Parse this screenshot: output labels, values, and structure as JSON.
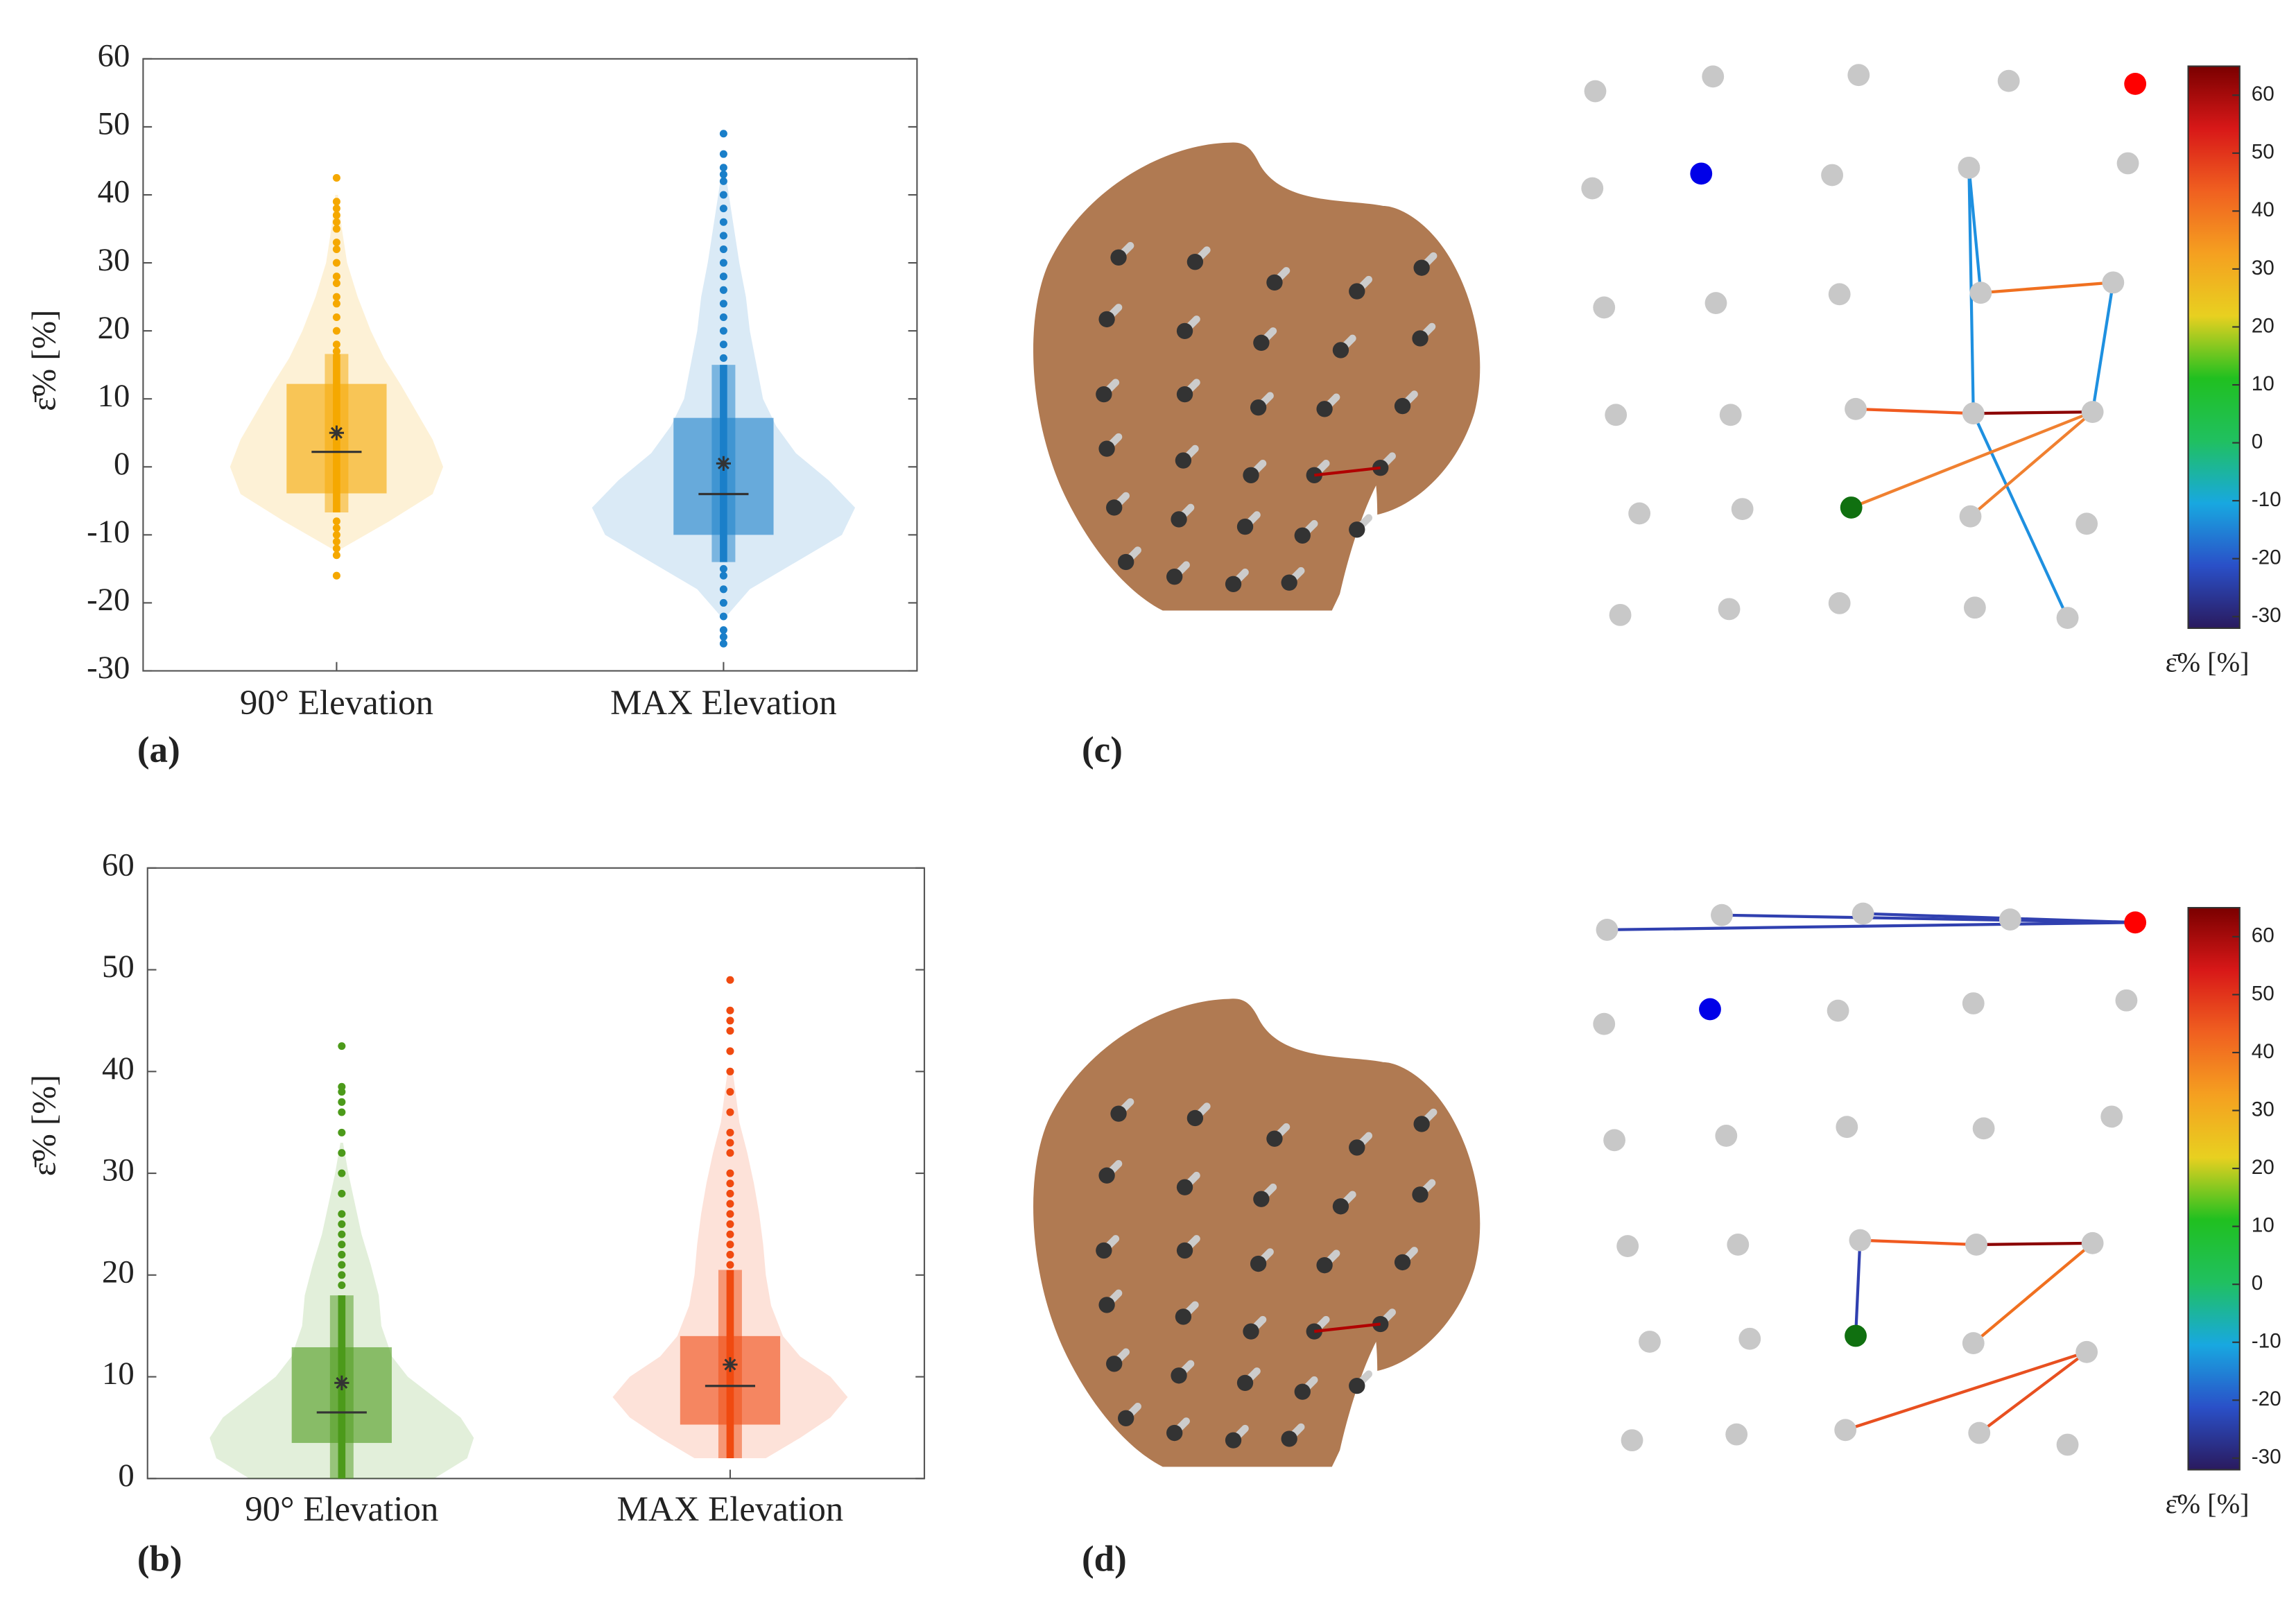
{
  "chart_data": [
    {
      "type": "violin",
      "label": "(a)",
      "ylabel": "ε̄%  [%]",
      "ylim": [
        -30,
        60
      ],
      "yticks": [
        -30,
        -20,
        -10,
        0,
        10,
        20,
        30,
        40,
        50,
        60
      ],
      "groups": [
        {
          "name": "90° Elevation",
          "color": "#f5a800",
          "q1": -3.9,
          "median": 2.2,
          "q3": 12.2,
          "mean": 5,
          "whisker": [
            -6.7,
            16.6
          ],
          "points": [
            -16,
            -13,
            -12,
            -11,
            -10,
            -9,
            -8,
            17,
            18,
            20,
            22,
            24,
            25,
            27,
            28,
            30,
            32,
            33,
            35,
            36,
            37,
            38,
            39,
            42.5
          ],
          "violin": {
            "y": [
              -12,
              -8,
              -4,
              0,
              4,
              8,
              12,
              16,
              20,
              25,
              30,
              35,
              40
            ],
            "density": [
              0.04,
              0.4,
              0.73,
              0.81,
              0.73,
              0.61,
              0.49,
              0.36,
              0.26,
              0.16,
              0.08,
              0.04,
              0.01
            ]
          }
        },
        {
          "name": "MAX Elevation",
          "color": "#1a7fc9",
          "q1": -10,
          "median": -4,
          "q3": 7.2,
          "mean": 0.5,
          "whisker": [
            -14,
            15
          ],
          "points": [
            -26,
            -25,
            -24,
            -22,
            -20,
            -18,
            -16,
            -15,
            16,
            18,
            20,
            22,
            24,
            26,
            28,
            30,
            32,
            34,
            36,
            38,
            40,
            42,
            43,
            44,
            46,
            49
          ],
          "violin": {
            "y": [
              -22,
              -18,
              -14,
              -10,
              -6,
              -2,
              2,
              6,
              10,
              15,
              20,
              25,
              30,
              35,
              40,
              44
            ],
            "density": [
              0.02,
              0.2,
              0.55,
              0.9,
              1.0,
              0.8,
              0.55,
              0.4,
              0.3,
              0.25,
              0.2,
              0.17,
              0.12,
              0.08,
              0.04,
              0.01
            ]
          }
        }
      ]
    },
    {
      "type": "violin",
      "label": "(b)",
      "ylabel": "ε̄%  [%]",
      "ylim": [
        0,
        60
      ],
      "yticks": [
        0,
        10,
        20,
        30,
        40,
        50,
        60
      ],
      "groups": [
        {
          "name": "90° Elevation",
          "color": "#4c9a1a",
          "q1": 3.5,
          "median": 6.5,
          "q3": 12.9,
          "mean": 9.4,
          "whisker": [
            0,
            18
          ],
          "points": [
            19,
            20,
            21,
            22,
            23,
            24,
            25,
            26,
            28,
            30,
            32,
            34,
            36,
            37,
            38,
            38.5,
            42.5
          ],
          "violin": {
            "y": [
              0,
              2,
              4,
              6,
              8,
              10,
              12,
              15,
              18,
              21,
              24,
              27,
              30,
              33
            ],
            "density": [
              0.7,
              0.95,
              1.0,
              0.9,
              0.7,
              0.5,
              0.38,
              0.3,
              0.28,
              0.22,
              0.15,
              0.1,
              0.05,
              0.01
            ]
          }
        },
        {
          "name": "MAX Elevation",
          "color": "#f04a10",
          "q1": 5.3,
          "median": 9.1,
          "q3": 14,
          "mean": 11.2,
          "whisker": [
            2,
            20.5
          ],
          "points": [
            21,
            22,
            23,
            24,
            25,
            26,
            27,
            28,
            29,
            30,
            32,
            33,
            34,
            36,
            38,
            40,
            42,
            44,
            45,
            46,
            49
          ],
          "violin": {
            "y": [
              2,
              4,
              6,
              8,
              10,
              12,
              14,
              17,
              20,
              23,
              26,
              29,
              32,
              35,
              40
            ],
            "density": [
              0.27,
              0.53,
              0.76,
              0.89,
              0.76,
              0.53,
              0.4,
              0.31,
              0.27,
              0.25,
              0.22,
              0.18,
              0.13,
              0.07,
              0.02
            ]
          }
        }
      ]
    },
    {
      "type": "markers",
      "label": "(c)",
      "ylabel": "ε̄%  [%]",
      "ylim": [
        -32,
        65
      ],
      "yticks": [
        -30,
        -20,
        -10,
        0,
        10,
        20,
        30,
        40,
        50,
        60
      ],
      "colormap": [
        "#2a1a5e",
        "#2a50c8",
        "#18a8e0",
        "#20c060",
        "#20c020",
        "#e8d020",
        "#f5a020",
        "#f06020",
        "#d81818",
        "#7a0000"
      ]
    },
    {
      "type": "markers",
      "label": "(d)",
      "ylabel": "ε̄%  [%]",
      "ylim": [
        -32,
        65
      ],
      "yticks": [
        -30,
        -20,
        -10,
        0,
        10,
        20,
        30,
        40,
        50,
        60
      ],
      "colormap": [
        "#2a1a5e",
        "#2a50c8",
        "#18a8e0",
        "#20c060",
        "#20c020",
        "#e8d020",
        "#f5a020",
        "#f06020",
        "#d81818",
        "#7a0000"
      ]
    }
  ]
}
